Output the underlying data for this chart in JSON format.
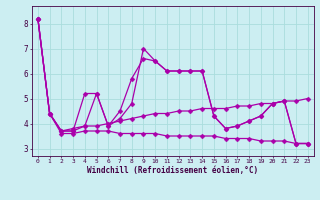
{
  "xlabel": "Windchill (Refroidissement éolien,°C)",
  "background_color": "#cceef2",
  "grid_color": "#aadddd",
  "line_color": "#aa00aa",
  "xlim": [
    -0.5,
    23.5
  ],
  "ylim": [
    2.7,
    8.7
  ],
  "xticks": [
    0,
    1,
    2,
    3,
    4,
    5,
    6,
    7,
    8,
    9,
    10,
    11,
    12,
    13,
    14,
    15,
    16,
    17,
    18,
    19,
    20,
    21,
    22,
    23
  ],
  "yticks": [
    3,
    4,
    5,
    6,
    7,
    8
  ],
  "series": [
    [
      8.2,
      4.4,
      3.7,
      3.7,
      5.2,
      5.2,
      3.9,
      4.2,
      4.8,
      7.0,
      6.5,
      6.1,
      6.1,
      6.1,
      6.1,
      4.3,
      3.8,
      3.9,
      4.1,
      4.3,
      4.8,
      4.9,
      3.2,
      3.2
    ],
    [
      8.2,
      4.4,
      3.7,
      3.7,
      3.9,
      5.2,
      3.9,
      4.5,
      5.8,
      6.6,
      6.5,
      6.1,
      6.1,
      6.1,
      6.1,
      4.3,
      3.8,
      3.9,
      4.1,
      4.3,
      4.8,
      4.9,
      3.2,
      3.2
    ],
    [
      8.2,
      4.4,
      3.7,
      3.8,
      3.9,
      3.9,
      4.0,
      4.1,
      4.2,
      4.3,
      4.4,
      4.4,
      4.5,
      4.5,
      4.6,
      4.6,
      4.6,
      4.7,
      4.7,
      4.8,
      4.8,
      4.9,
      4.9,
      5.0
    ],
    [
      8.2,
      4.4,
      3.6,
      3.6,
      3.7,
      3.7,
      3.7,
      3.6,
      3.6,
      3.6,
      3.6,
      3.5,
      3.5,
      3.5,
      3.5,
      3.5,
      3.4,
      3.4,
      3.4,
      3.3,
      3.3,
      3.3,
      3.2,
      3.2
    ]
  ],
  "markersize": 2.5,
  "linewidth": 0.9
}
